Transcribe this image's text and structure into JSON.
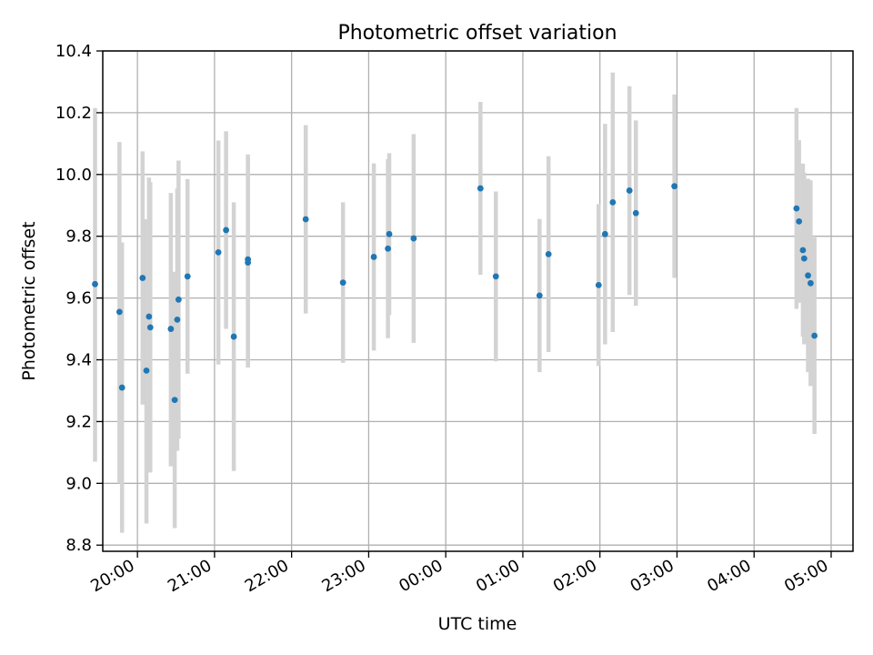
{
  "chart_data": {
    "type": "scatter",
    "title": "Photometric offset variation",
    "xlabel": "UTC time",
    "ylabel": "Photometric offset",
    "x_ticks": [
      "20:00",
      "21:00",
      "22:00",
      "23:00",
      "00:00",
      "01:00",
      "02:00",
      "03:00",
      "04:00",
      "05:00"
    ],
    "y_ticks": [
      "8.8",
      "9.0",
      "9.2",
      "9.4",
      "9.6",
      "9.8",
      "10.0",
      "10.2",
      "10.4"
    ],
    "xlim": [
      "19:33",
      "05:17"
    ],
    "ylim": [
      8.78,
      10.4
    ],
    "grid": true,
    "colors": {
      "point": "#1f77b4",
      "errorbar": "#d3d3d3",
      "grid": "#b0b0b0"
    },
    "points": [
      {
        "t": "19:27",
        "y": 9.645,
        "lo": 9.07,
        "hi": 10.215
      },
      {
        "t": "19:46",
        "y": 9.555,
        "lo": 9.0,
        "hi": 10.105
      },
      {
        "t": "19:48",
        "y": 9.31,
        "lo": 8.84,
        "hi": 9.78
      },
      {
        "t": "20:04",
        "y": 9.665,
        "lo": 9.255,
        "hi": 10.075
      },
      {
        "t": "20:07",
        "y": 9.365,
        "lo": 8.87,
        "hi": 9.855
      },
      {
        "t": "20:09",
        "y": 9.54,
        "lo": 9.09,
        "hi": 9.99
      },
      {
        "t": "20:10",
        "y": 9.505,
        "lo": 9.035,
        "hi": 9.975
      },
      {
        "t": "20:26",
        "y": 9.5,
        "lo": 9.055,
        "hi": 9.94
      },
      {
        "t": "20:29",
        "y": 9.27,
        "lo": 8.855,
        "hi": 9.685
      },
      {
        "t": "20:31",
        "y": 9.53,
        "lo": 9.105,
        "hi": 9.955
      },
      {
        "t": "20:32",
        "y": 9.595,
        "lo": 9.145,
        "hi": 10.045
      },
      {
        "t": "20:39",
        "y": 9.67,
        "lo": 9.355,
        "hi": 9.985
      },
      {
        "t": "21:03",
        "y": 9.748,
        "lo": 9.385,
        "hi": 10.11
      },
      {
        "t": "21:09",
        "y": 9.82,
        "lo": 9.5,
        "hi": 10.14
      },
      {
        "t": "21:15",
        "y": 9.475,
        "lo": 9.04,
        "hi": 9.91
      },
      {
        "t": "21:26",
        "y": 9.725,
        "lo": 9.385,
        "hi": 10.065
      },
      {
        "t": "21:26",
        "y": 9.715,
        "lo": 9.375,
        "hi": 10.055
      },
      {
        "t": "22:11",
        "y": 9.855,
        "lo": 9.55,
        "hi": 10.16
      },
      {
        "t": "22:40",
        "y": 9.65,
        "lo": 9.39,
        "hi": 9.91
      },
      {
        "t": "23:04",
        "y": 9.733,
        "lo": 9.43,
        "hi": 10.036
      },
      {
        "t": "23:15",
        "y": 9.76,
        "lo": 9.47,
        "hi": 10.05
      },
      {
        "t": "23:16",
        "y": 9.807,
        "lo": 9.545,
        "hi": 10.069
      },
      {
        "t": "23:35",
        "y": 9.793,
        "lo": 9.455,
        "hi": 10.131
      },
      {
        "t": "00:27",
        "y": 9.955,
        "lo": 9.675,
        "hi": 10.235
      },
      {
        "t": "00:39",
        "y": 9.67,
        "lo": 9.395,
        "hi": 9.945
      },
      {
        "t": "01:13",
        "y": 9.608,
        "lo": 9.36,
        "hi": 9.856
      },
      {
        "t": "01:20",
        "y": 9.742,
        "lo": 9.425,
        "hi": 10.059
      },
      {
        "t": "01:59",
        "y": 9.642,
        "lo": 9.38,
        "hi": 9.904
      },
      {
        "t": "02:04",
        "y": 9.807,
        "lo": 9.45,
        "hi": 10.164
      },
      {
        "t": "02:10",
        "y": 9.91,
        "lo": 9.49,
        "hi": 10.33
      },
      {
        "t": "02:23",
        "y": 9.948,
        "lo": 9.61,
        "hi": 10.286
      },
      {
        "t": "02:28",
        "y": 9.875,
        "lo": 9.575,
        "hi": 10.175
      },
      {
        "t": "02:58",
        "y": 9.962,
        "lo": 9.665,
        "hi": 10.259
      },
      {
        "t": "04:33",
        "y": 9.89,
        "lo": 9.565,
        "hi": 10.215
      },
      {
        "t": "04:35",
        "y": 9.848,
        "lo": 9.585,
        "hi": 10.111
      },
      {
        "t": "04:38",
        "y": 9.755,
        "lo": 9.475,
        "hi": 10.035
      },
      {
        "t": "04:39",
        "y": 9.728,
        "lo": 9.45,
        "hi": 10.006
      },
      {
        "t": "04:42",
        "y": 9.673,
        "lo": 9.36,
        "hi": 9.986
      },
      {
        "t": "04:44",
        "y": 9.648,
        "lo": 9.315,
        "hi": 9.981
      },
      {
        "t": "04:47",
        "y": 9.478,
        "lo": 9.16,
        "hi": 9.796
      }
    ]
  }
}
